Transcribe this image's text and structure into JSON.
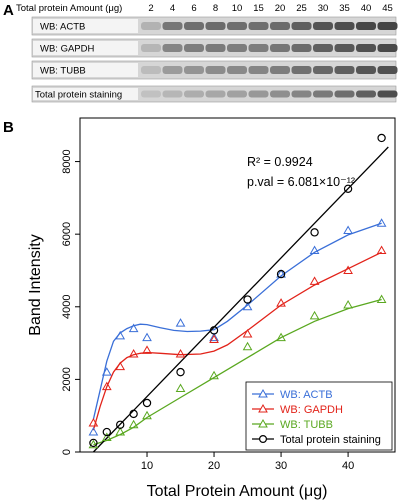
{
  "panel_a": {
    "label": "A",
    "header_label": "Total protein Amount (μg)",
    "lanes": [
      "2",
      "4",
      "6",
      "8",
      "10",
      "15",
      "20",
      "25",
      "30",
      "35",
      "40",
      "45"
    ],
    "blots": [
      {
        "label": "WB: ACTB",
        "intensity": [
          0.15,
          0.55,
          0.6,
          0.62,
          0.6,
          0.6,
          0.62,
          0.7,
          0.78,
          0.82,
          0.86,
          0.88
        ]
      },
      {
        "label": "WB: GAPDH",
        "intensity": [
          0.12,
          0.45,
          0.5,
          0.52,
          0.5,
          0.5,
          0.55,
          0.62,
          0.7,
          0.75,
          0.8,
          0.85
        ]
      },
      {
        "label": "WB: TUBB",
        "intensity": [
          0.08,
          0.3,
          0.35,
          0.4,
          0.42,
          0.45,
          0.5,
          0.58,
          0.65,
          0.7,
          0.76,
          0.8
        ]
      },
      {
        "label": "Total protein staining",
        "intensity": [
          0.05,
          0.12,
          0.18,
          0.22,
          0.26,
          0.32,
          0.38,
          0.45,
          0.52,
          0.6,
          0.7,
          0.82
        ]
      }
    ]
  },
  "panel_b": {
    "label": "B",
    "annotation_r2": "R² = 0.9924",
    "annotation_pval": "p.val = 6.081×10⁻¹²"
  },
  "chart_data": {
    "type": "scatter",
    "xlabel": "Total Protein Amount (μg)",
    "ylabel": "Band Intensity",
    "xlim": [
      0,
      47
    ],
    "ylim": [
      0,
      9200
    ],
    "xticks": [
      10,
      20,
      30,
      40
    ],
    "yticks": [
      0,
      2000,
      4000,
      6000,
      8000
    ],
    "legend_position": "bottom-right",
    "grid": false,
    "series": [
      {
        "name": "WB: ACTB",
        "marker": "triangle",
        "color": "#3a6fd8",
        "x": [
          2,
          4,
          6,
          8,
          10,
          15,
          20,
          25,
          30,
          35,
          40,
          45
        ],
        "y": [
          550,
          2200,
          3200,
          3400,
          3150,
          3550,
          3150,
          4000,
          4900,
          5550,
          6100,
          6300
        ],
        "fit": [
          [
            2,
            900
          ],
          [
            3,
            1700
          ],
          [
            4,
            2500
          ],
          [
            5,
            3050
          ],
          [
            6,
            3280
          ],
          [
            7,
            3400
          ],
          [
            8,
            3480
          ],
          [
            9,
            3520
          ],
          [
            10,
            3510
          ],
          [
            12,
            3420
          ],
          [
            14,
            3350
          ],
          [
            16,
            3320
          ],
          [
            18,
            3330
          ],
          [
            20,
            3370
          ],
          [
            22,
            3600
          ],
          [
            25,
            4050
          ],
          [
            30,
            4850
          ],
          [
            35,
            5500
          ],
          [
            40,
            5980
          ],
          [
            45,
            6300
          ]
        ]
      },
      {
        "name": "WB: GAPDH",
        "marker": "triangle",
        "color": "#e2231a",
        "x": [
          2,
          4,
          6,
          8,
          10,
          15,
          20,
          25,
          30,
          35,
          40,
          45
        ],
        "y": [
          800,
          1800,
          2350,
          2700,
          2800,
          2700,
          3100,
          3250,
          4100,
          4700,
          5000,
          5550
        ],
        "fit": [
          [
            2,
            600
          ],
          [
            3,
            1250
          ],
          [
            4,
            1800
          ],
          [
            5,
            2200
          ],
          [
            6,
            2450
          ],
          [
            7,
            2600
          ],
          [
            8,
            2680
          ],
          [
            9,
            2720
          ],
          [
            10,
            2740
          ],
          [
            12,
            2720
          ],
          [
            15,
            2680
          ],
          [
            18,
            2700
          ],
          [
            20,
            2780
          ],
          [
            22,
            2950
          ],
          [
            25,
            3350
          ],
          [
            30,
            4050
          ],
          [
            35,
            4600
          ],
          [
            40,
            5050
          ],
          [
            45,
            5500
          ]
        ]
      },
      {
        "name": "WB: TUBB",
        "marker": "triangle",
        "color": "#5aa820",
        "x": [
          2,
          4,
          6,
          8,
          10,
          15,
          20,
          25,
          30,
          35,
          40,
          45
        ],
        "y": [
          200,
          400,
          550,
          750,
          1000,
          1750,
          2100,
          2900,
          3150,
          3750,
          4050,
          4200
        ],
        "fit": [
          [
            2,
            200
          ],
          [
            4,
            320
          ],
          [
            6,
            480
          ],
          [
            8,
            680
          ],
          [
            10,
            950
          ],
          [
            15,
            1500
          ],
          [
            20,
            2050
          ],
          [
            25,
            2600
          ],
          [
            30,
            3150
          ],
          [
            35,
            3600
          ],
          [
            40,
            3950
          ],
          [
            45,
            4200
          ]
        ]
      },
      {
        "name": "Total protein staining",
        "marker": "circle",
        "color": "#000000",
        "x": [
          2,
          4,
          6,
          8,
          10,
          15,
          20,
          25,
          30,
          35,
          40,
          45
        ],
        "y": [
          250,
          550,
          750,
          1050,
          1350,
          2200,
          3350,
          4200,
          4900,
          6050,
          7250,
          8650
        ],
        "fit": [
          [
            2,
            0
          ],
          [
            46,
            8400
          ]
        ]
      }
    ]
  }
}
